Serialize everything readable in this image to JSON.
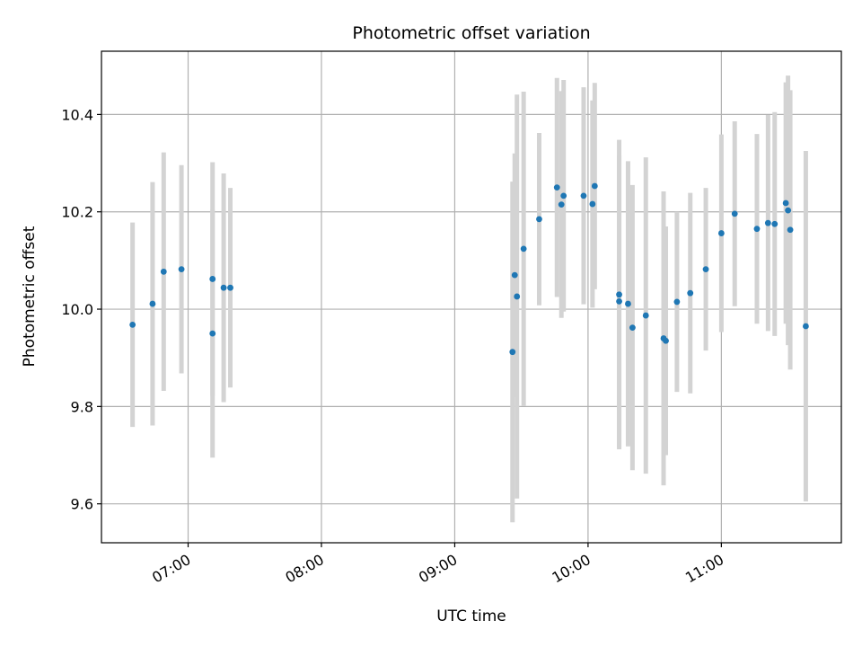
{
  "chart_data": {
    "type": "scatter",
    "title": "Photometric offset variation",
    "xlabel": "UTC time",
    "ylabel": "Photometric offset",
    "x_ticks": [
      "07:00",
      "08:00",
      "09:00",
      "10:00",
      "11:00"
    ],
    "y_ticks": [
      "9.6",
      "9.8",
      "10.0",
      "10.2",
      "10.4"
    ],
    "xlim": [
      "06:21",
      "11:54"
    ],
    "ylim": [
      9.52,
      10.53
    ],
    "grid": true,
    "colors": {
      "point": "#1f77b4",
      "errorbar": "#d3d3d3",
      "grid": "#b0b0b0"
    },
    "points": [
      {
        "x": "06:35",
        "y": 9.968,
        "yerr": 0.21
      },
      {
        "x": "06:44",
        "y": 10.011,
        "yerr": 0.25
      },
      {
        "x": "06:49",
        "y": 10.077,
        "yerr": 0.245
      },
      {
        "x": "06:57",
        "y": 10.082,
        "yerr": 0.214
      },
      {
        "x": "07:11",
        "y": 9.95,
        "yerr": 0.255
      },
      {
        "x": "07:11",
        "y": 10.062,
        "yerr": 0.24
      },
      {
        "x": "07:16",
        "y": 10.044,
        "yerr": 0.235
      },
      {
        "x": "07:19",
        "y": 10.044,
        "yerr": 0.205
      },
      {
        "x": "09:26",
        "y": 9.912,
        "yerr": 0.35
      },
      {
        "x": "09:27",
        "y": 10.07,
        "yerr": 0.25
      },
      {
        "x": "09:28",
        "y": 10.026,
        "yerr": 0.415
      },
      {
        "x": "09:31",
        "y": 10.124,
        "yerr": 0.323
      },
      {
        "x": "09:38",
        "y": 10.185,
        "yerr": 0.177
      },
      {
        "x": "09:46",
        "y": 10.25,
        "yerr": 0.225
      },
      {
        "x": "09:48",
        "y": 10.215,
        "yerr": 0.233
      },
      {
        "x": "09:49",
        "y": 10.233,
        "yerr": 0.238
      },
      {
        "x": "09:58",
        "y": 10.233,
        "yerr": 0.223
      },
      {
        "x": "10:02",
        "y": 10.216,
        "yerr": 0.213
      },
      {
        "x": "10:03",
        "y": 10.253,
        "yerr": 0.212
      },
      {
        "x": "10:14",
        "y": 10.03,
        "yerr": 0.318
      },
      {
        "x": "10:14",
        "y": 10.016,
        "yerr": 0.3
      },
      {
        "x": "10:18",
        "y": 10.011,
        "yerr": 0.293
      },
      {
        "x": "10:20",
        "y": 9.962,
        "yerr": 0.293
      },
      {
        "x": "10:26",
        "y": 9.987,
        "yerr": 0.325
      },
      {
        "x": "10:34",
        "y": 9.94,
        "yerr": 0.302
      },
      {
        "x": "10:35",
        "y": 9.935,
        "yerr": 0.235
      },
      {
        "x": "10:40",
        "y": 10.015,
        "yerr": 0.185
      },
      {
        "x": "10:46",
        "y": 10.033,
        "yerr": 0.206
      },
      {
        "x": "10:53",
        "y": 10.082,
        "yerr": 0.167
      },
      {
        "x": "11:00",
        "y": 10.156,
        "yerr": 0.203
      },
      {
        "x": "11:06",
        "y": 10.196,
        "yerr": 0.19
      },
      {
        "x": "11:16",
        "y": 10.165,
        "yerr": 0.195
      },
      {
        "x": "11:21",
        "y": 10.177,
        "yerr": 0.222
      },
      {
        "x": "11:24",
        "y": 10.175,
        "yerr": 0.23
      },
      {
        "x": "11:29",
        "y": 10.218,
        "yerr": 0.248
      },
      {
        "x": "11:30",
        "y": 10.203,
        "yerr": 0.277
      },
      {
        "x": "11:31",
        "y": 10.163,
        "yerr": 0.287
      },
      {
        "x": "11:38",
        "y": 9.965,
        "yerr": 0.36
      }
    ]
  }
}
